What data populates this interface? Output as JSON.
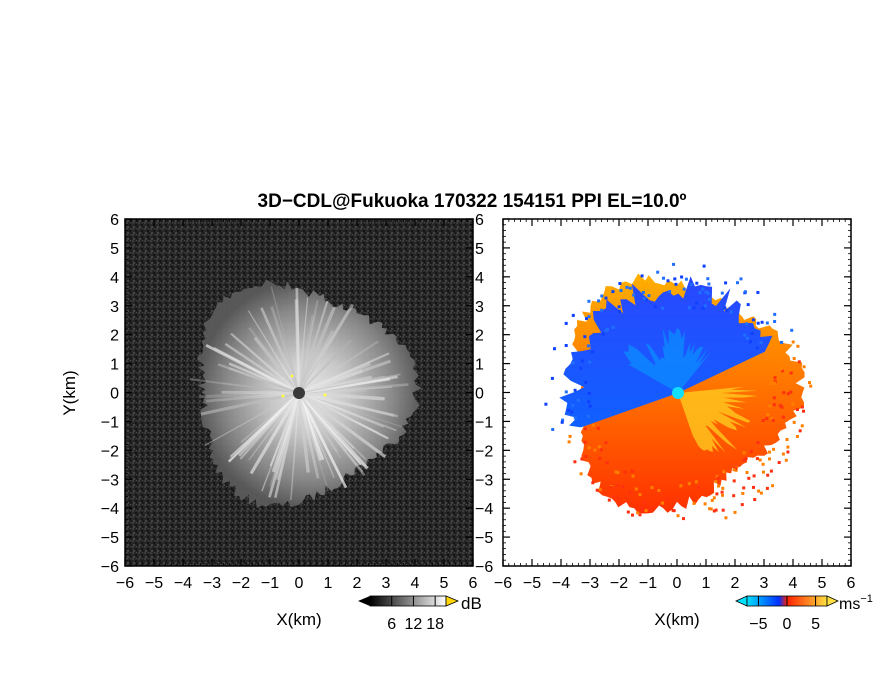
{
  "title": "3D−CDL@Fukuoka 170322 154151 PPI EL=10.0º",
  "chart_data": [
    {
      "type": "heatmap",
      "name": "snr-panel",
      "xlabel": "X(km)",
      "ylabel": "Y(km)",
      "xlim": [
        -6,
        6
      ],
      "ylim": [
        -6,
        6
      ],
      "x_ticks": [
        "−6",
        "−5",
        "−4",
        "−3",
        "−2",
        "−1",
        "0",
        "1",
        "2",
        "3",
        "4",
        "5",
        "6"
      ],
      "y_ticks": [
        "6",
        "5",
        "4",
        "3",
        "2",
        "1",
        "0",
        "−1",
        "−2",
        "−3",
        "−4",
        "−5",
        "−6"
      ],
      "echo_radius_km": [
        3.3,
        4.1
      ],
      "colorbar": {
        "unit": "dB",
        "ticks": [
          6,
          12,
          18
        ],
        "range": [
          0,
          21
        ],
        "colors": [
          "#000000",
          "#ffffff"
        ],
        "extend_high_color": "#ffd400"
      }
    },
    {
      "type": "heatmap",
      "name": "doppler-velocity-panel",
      "xlabel": "X(km)",
      "ylabel": "",
      "xlim": [
        -6,
        6
      ],
      "ylim": [
        -6,
        6
      ],
      "x_ticks": [
        "−6",
        "−5",
        "−4",
        "−3",
        "−2",
        "−1",
        "0",
        "1",
        "2",
        "3",
        "4",
        "5",
        "6"
      ],
      "y_ticks": [
        "6",
        "5",
        "4",
        "3",
        "2",
        "1",
        "0",
        "−1",
        "−2",
        "−3",
        "−4",
        "−5",
        "−6"
      ],
      "echo_radius_km": [
        3.4,
        4.3
      ],
      "colorbar": {
        "unit": "ms",
        "unit_superscript": "−1",
        "ticks": [
          -5,
          0,
          5
        ],
        "range": [
          -7,
          7
        ],
        "colors": [
          "#00e0ff",
          "#0030ff",
          "#ff2000",
          "#ffe040"
        ]
      }
    }
  ]
}
